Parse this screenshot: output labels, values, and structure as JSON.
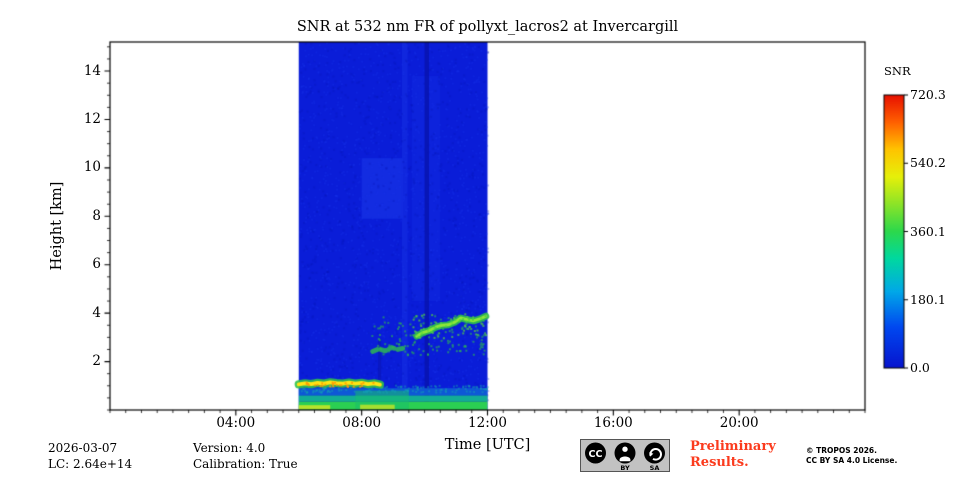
{
  "figure": {
    "title": "SNR at 532 nm FR of pollyxt_lacros2 at Invercargill",
    "xlabel": "Time [UTC]",
    "ylabel": "Height [km]",
    "colorbar_label": "SNR"
  },
  "footer": {
    "date": "2026-03-07",
    "lc": "LC: 2.64e+14",
    "version": "Version: 4.0",
    "calibration": "Calibration: True",
    "preliminary_line1": "Preliminary",
    "preliminary_line2": "Results.",
    "preliminary_color": "#fb3b1e",
    "copyright_line1": "© TROPOS 2026.",
    "copyright_line2": "CC BY SA 4.0 License.",
    "cc_badge": {
      "cc": "CC",
      "by": "BY",
      "sa": "SA"
    }
  },
  "chart_data": {
    "type": "heatmap",
    "title": "SNR at 532 nm FR of pollyxt_lacros2 at Invercargill",
    "xlabel": "Time [UTC]",
    "ylabel": "Height [km]",
    "xlim": [
      0,
      24
    ],
    "ylim": [
      0,
      15.2
    ],
    "x_tick_labels": [
      "04:00",
      "08:00",
      "12:00",
      "16:00",
      "20:00"
    ],
    "x_tick_hours": [
      4,
      8,
      12,
      16,
      20
    ],
    "y_tick_labels": [
      "2",
      "4",
      "6",
      "8",
      "10",
      "12",
      "14"
    ],
    "y_tick_values": [
      2,
      4,
      6,
      8,
      10,
      12,
      14
    ],
    "minor_x_step_hours": 0.5,
    "minor_y_step_km": 0.5,
    "data_window_hours": [
      6.0,
      12.0
    ],
    "grid": false,
    "colorbar": {
      "label": "SNR",
      "vmin": 0.0,
      "vmax": 720.3,
      "tick_labels": [
        "720.3",
        "540.2",
        "360.1",
        "180.1",
        "0.0"
      ],
      "colormap": "jet",
      "gradient_stops_bottom_to_top": [
        [
          "0",
          "#0714ce"
        ],
        [
          "0.15",
          "#0048f0"
        ],
        [
          "0.28",
          "#00a8e8"
        ],
        [
          "0.40",
          "#00d8a0"
        ],
        [
          "0.50",
          "#2cd84c"
        ],
        [
          "0.60",
          "#8ce428"
        ],
        [
          "0.70",
          "#e6f00a"
        ],
        [
          "0.80",
          "#ffc400"
        ],
        [
          "0.90",
          "#ff6000"
        ],
        [
          "1",
          "#e81000"
        ]
      ]
    },
    "features": [
      {
        "name": "low-snr-background",
        "type": "rect",
        "t": [
          6.0,
          12.0
        ],
        "h": [
          0.0,
          15.2
        ],
        "color": "#0a1dd8"
      },
      {
        "name": "faint-mid-level-patch",
        "type": "rect",
        "t": [
          8.0,
          9.3
        ],
        "h": [
          7.9,
          10.4
        ],
        "color": "#1733e6",
        "alpha": 0.7
      },
      {
        "name": "faint-column",
        "type": "rect",
        "t": [
          9.28,
          9.46
        ],
        "h": [
          0.8,
          15.2
        ],
        "color": "#1530e4",
        "alpha": 0.55
      },
      {
        "name": "faint-mid-column",
        "type": "rect",
        "t": [
          9.6,
          10.5
        ],
        "h": [
          4.5,
          13.8
        ],
        "color": "#0f27de",
        "alpha": 0.65
      },
      {
        "name": "noise-light",
        "type": "speckle",
        "t": [
          6.0,
          12.0
        ],
        "h": [
          0.0,
          15.2
        ],
        "count": 1600,
        "size": 2,
        "color": "#1b36ec",
        "alpha": 0.3,
        "seed": 11
      },
      {
        "name": "noise-dark",
        "type": "speckle",
        "t": [
          6.0,
          12.0
        ],
        "h": [
          0.0,
          15.2
        ],
        "count": 900,
        "size": 2,
        "color": "#0715b2",
        "alpha": 0.28,
        "seed": 12
      },
      {
        "name": "dark-gap-column",
        "type": "rect",
        "t": [
          10.0,
          10.14
        ],
        "h": [
          0.0,
          15.2
        ],
        "color": "#0713ac",
        "alpha": 0.8
      },
      {
        "name": "dark-thin-column",
        "type": "rect",
        "t": [
          8.52,
          8.62
        ],
        "h": [
          0.5,
          2.9
        ],
        "color": "#0a16b6",
        "alpha": 0.6
      },
      {
        "name": "surface-fade",
        "type": "rect",
        "t": [
          6.0,
          12.0
        ],
        "h": [
          0.6,
          0.9
        ],
        "color": "#0e5fd6",
        "alpha": 0.9
      },
      {
        "name": "surface-teal",
        "type": "rect",
        "t": [
          6.0,
          12.0
        ],
        "h": [
          0.35,
          0.6
        ],
        "color": "#12ad96"
      },
      {
        "name": "surface-green",
        "type": "rect",
        "t": [
          6.0,
          12.0
        ],
        "h": [
          0.0,
          0.35
        ],
        "color": "#2bcf52"
      },
      {
        "name": "surface-bright-section",
        "type": "rect",
        "t": [
          7.8,
          9.5
        ],
        "h": [
          0.0,
          0.8
        ],
        "color": "#18bd6e",
        "alpha": 0.55
      },
      {
        "name": "surface-yellow-early",
        "type": "rect",
        "t": [
          6.0,
          7.0
        ],
        "h": [
          0.03,
          0.2
        ],
        "color": "#b5e32c"
      },
      {
        "name": "surface-yellow-mid",
        "type": "rect",
        "t": [
          7.95,
          9.05
        ],
        "h": [
          0.03,
          0.22
        ],
        "color": "#a5de30"
      },
      {
        "name": "surface-top-speckle",
        "type": "speckle",
        "t": [
          6.0,
          12.0
        ],
        "h": [
          0.75,
          1.05
        ],
        "count": 150,
        "size": 2,
        "color": "#14a0b4",
        "alpha": 0.5,
        "seed": 13
      },
      {
        "name": "elevated-layer-halo",
        "type": "polyline",
        "points": [
          [
            6.0,
            1.06
          ],
          [
            6.2,
            1.1
          ],
          [
            6.4,
            1.07
          ],
          [
            6.6,
            1.12
          ],
          [
            6.8,
            1.09
          ],
          [
            7.0,
            1.14
          ],
          [
            7.2,
            1.11
          ],
          [
            7.4,
            1.09
          ],
          [
            7.6,
            1.13
          ],
          [
            7.8,
            1.09
          ],
          [
            8.0,
            1.12
          ],
          [
            8.2,
            1.07
          ],
          [
            8.4,
            1.1
          ],
          [
            8.58,
            1.05
          ]
        ],
        "width_km": 0.34,
        "color": "#2fc24a",
        "alpha": 0.9
      },
      {
        "name": "elevated-layer-core",
        "type": "polyline",
        "points": [
          [
            6.0,
            1.06
          ],
          [
            6.2,
            1.1
          ],
          [
            6.4,
            1.07
          ],
          [
            6.6,
            1.12
          ],
          [
            6.8,
            1.09
          ],
          [
            7.0,
            1.14
          ],
          [
            7.2,
            1.11
          ],
          [
            7.4,
            1.09
          ],
          [
            7.6,
            1.13
          ],
          [
            7.8,
            1.09
          ],
          [
            8.0,
            1.12
          ],
          [
            8.2,
            1.07
          ],
          [
            8.4,
            1.1
          ],
          [
            8.58,
            1.05
          ]
        ],
        "width_km": 0.16,
        "color": "#ffe414"
      },
      {
        "name": "elevated-layer-orange-dots",
        "type": "speckle",
        "t": [
          6.1,
          8.5
        ],
        "h": [
          1.0,
          1.18
        ],
        "count": 30,
        "size": 2,
        "color": "#ff9a00",
        "alpha": 0.85,
        "seed": 14
      },
      {
        "name": "aerosol-band-early",
        "type": "polyline",
        "points": [
          [
            8.35,
            2.42
          ],
          [
            8.55,
            2.52
          ],
          [
            8.75,
            2.44
          ],
          [
            8.95,
            2.58
          ],
          [
            9.15,
            2.5
          ],
          [
            9.35,
            2.56
          ]
        ],
        "width_km": 0.2,
        "color": "#2fc24a",
        "alpha": 0.8,
        "dash": [
          5,
          4
        ]
      },
      {
        "name": "aerosol-band-late-halo",
        "type": "polyline",
        "points": [
          [
            9.75,
            3.05
          ],
          [
            9.95,
            3.2
          ],
          [
            10.15,
            3.28
          ],
          [
            10.35,
            3.42
          ],
          [
            10.55,
            3.5
          ],
          [
            10.75,
            3.52
          ],
          [
            10.95,
            3.62
          ],
          [
            11.15,
            3.8
          ],
          [
            11.35,
            3.73
          ],
          [
            11.55,
            3.68
          ],
          [
            11.75,
            3.76
          ],
          [
            11.95,
            3.88
          ]
        ],
        "width_km": 0.28,
        "color": "#2fc24a",
        "alpha": 0.9
      },
      {
        "name": "aerosol-band-late-core",
        "type": "polyline",
        "points": [
          [
            9.75,
            3.05
          ],
          [
            9.95,
            3.2
          ],
          [
            10.15,
            3.28
          ],
          [
            10.35,
            3.42
          ],
          [
            10.55,
            3.5
          ],
          [
            10.75,
            3.52
          ],
          [
            10.95,
            3.62
          ],
          [
            11.15,
            3.8
          ],
          [
            11.35,
            3.73
          ],
          [
            11.55,
            3.68
          ],
          [
            11.75,
            3.76
          ],
          [
            11.95,
            3.88
          ]
        ],
        "width_km": 0.12,
        "color": "#8fe838"
      },
      {
        "name": "aerosol-speckles",
        "type": "speckle",
        "t": [
          8.3,
          12.0
        ],
        "h": [
          2.3,
          3.95
        ],
        "count": 130,
        "size": 2,
        "color": "#2fc24a",
        "alpha": 0.6,
        "seed": 15
      },
      {
        "name": "aerosol-speckles-bright",
        "type": "speckle",
        "t": [
          9.4,
          12.0
        ],
        "h": [
          3.0,
          4.0
        ],
        "count": 60,
        "size": 2,
        "color": "#57d83c",
        "alpha": 0.7,
        "seed": 16
      }
    ]
  }
}
